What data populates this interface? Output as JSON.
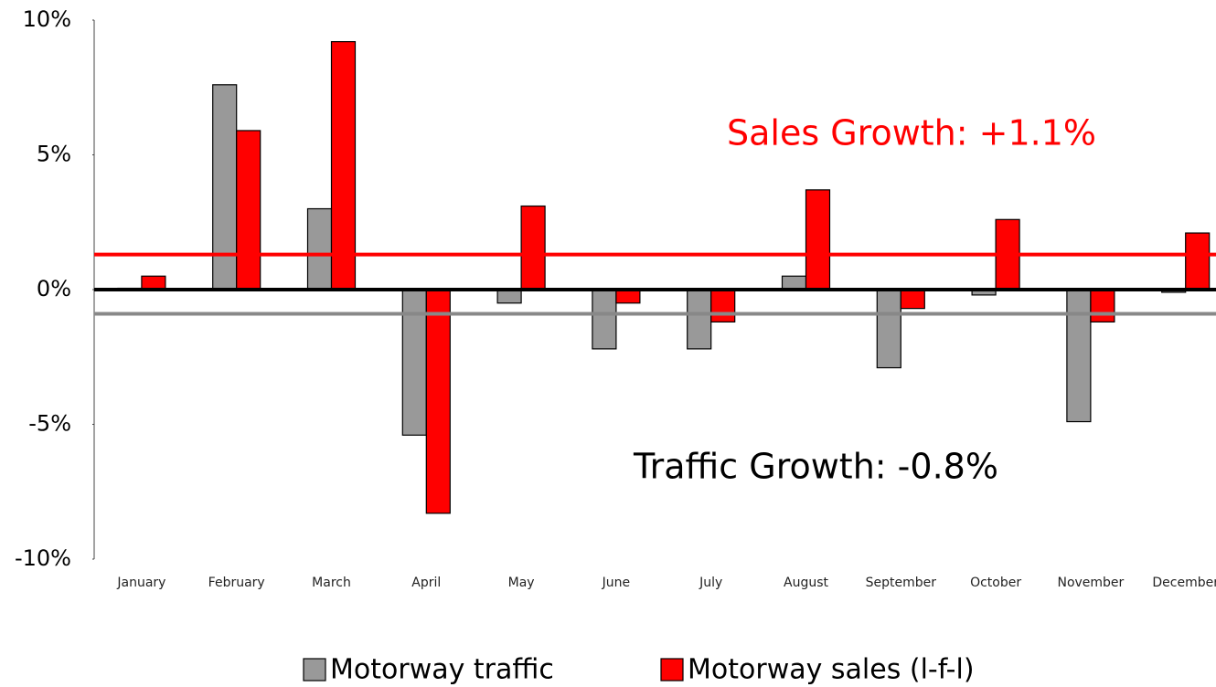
{
  "chart_data": {
    "type": "bar",
    "categories": [
      "January",
      "February",
      "March",
      "April",
      "May",
      "June",
      "July",
      "August",
      "September",
      "October",
      "November",
      "December"
    ],
    "series": [
      {
        "name": "Motorway traffic",
        "color": "#999999",
        "values": [
          0.05,
          7.6,
          3.0,
          -5.4,
          -0.5,
          -2.2,
          -2.2,
          0.5,
          -2.9,
          -0.2,
          -4.9,
          -0.1
        ]
      },
      {
        "name": "Motorway sales (l-f-l)",
        "color": "#ff0000",
        "values": [
          0.5,
          5.9,
          9.2,
          -8.3,
          3.1,
          -0.5,
          -1.2,
          3.7,
          -0.7,
          2.6,
          -1.2,
          2.1
        ]
      }
    ],
    "reference_lines": [
      {
        "value": 1.3,
        "color": "#ff0000"
      },
      {
        "value": -0.9,
        "color": "#888888"
      }
    ],
    "annotations": [
      "Sales Growth: +1.1%",
      "Traffic Growth: -0.8%"
    ],
    "ylim": [
      -10,
      10
    ],
    "yticks": [
      {
        "value": -10,
        "label": "-10%"
      },
      {
        "value": -5,
        "label": "-5%"
      },
      {
        "value": 0,
        "label": "0%"
      },
      {
        "value": 5,
        "label": "5%"
      },
      {
        "value": 10,
        "label": "10%"
      }
    ]
  }
}
